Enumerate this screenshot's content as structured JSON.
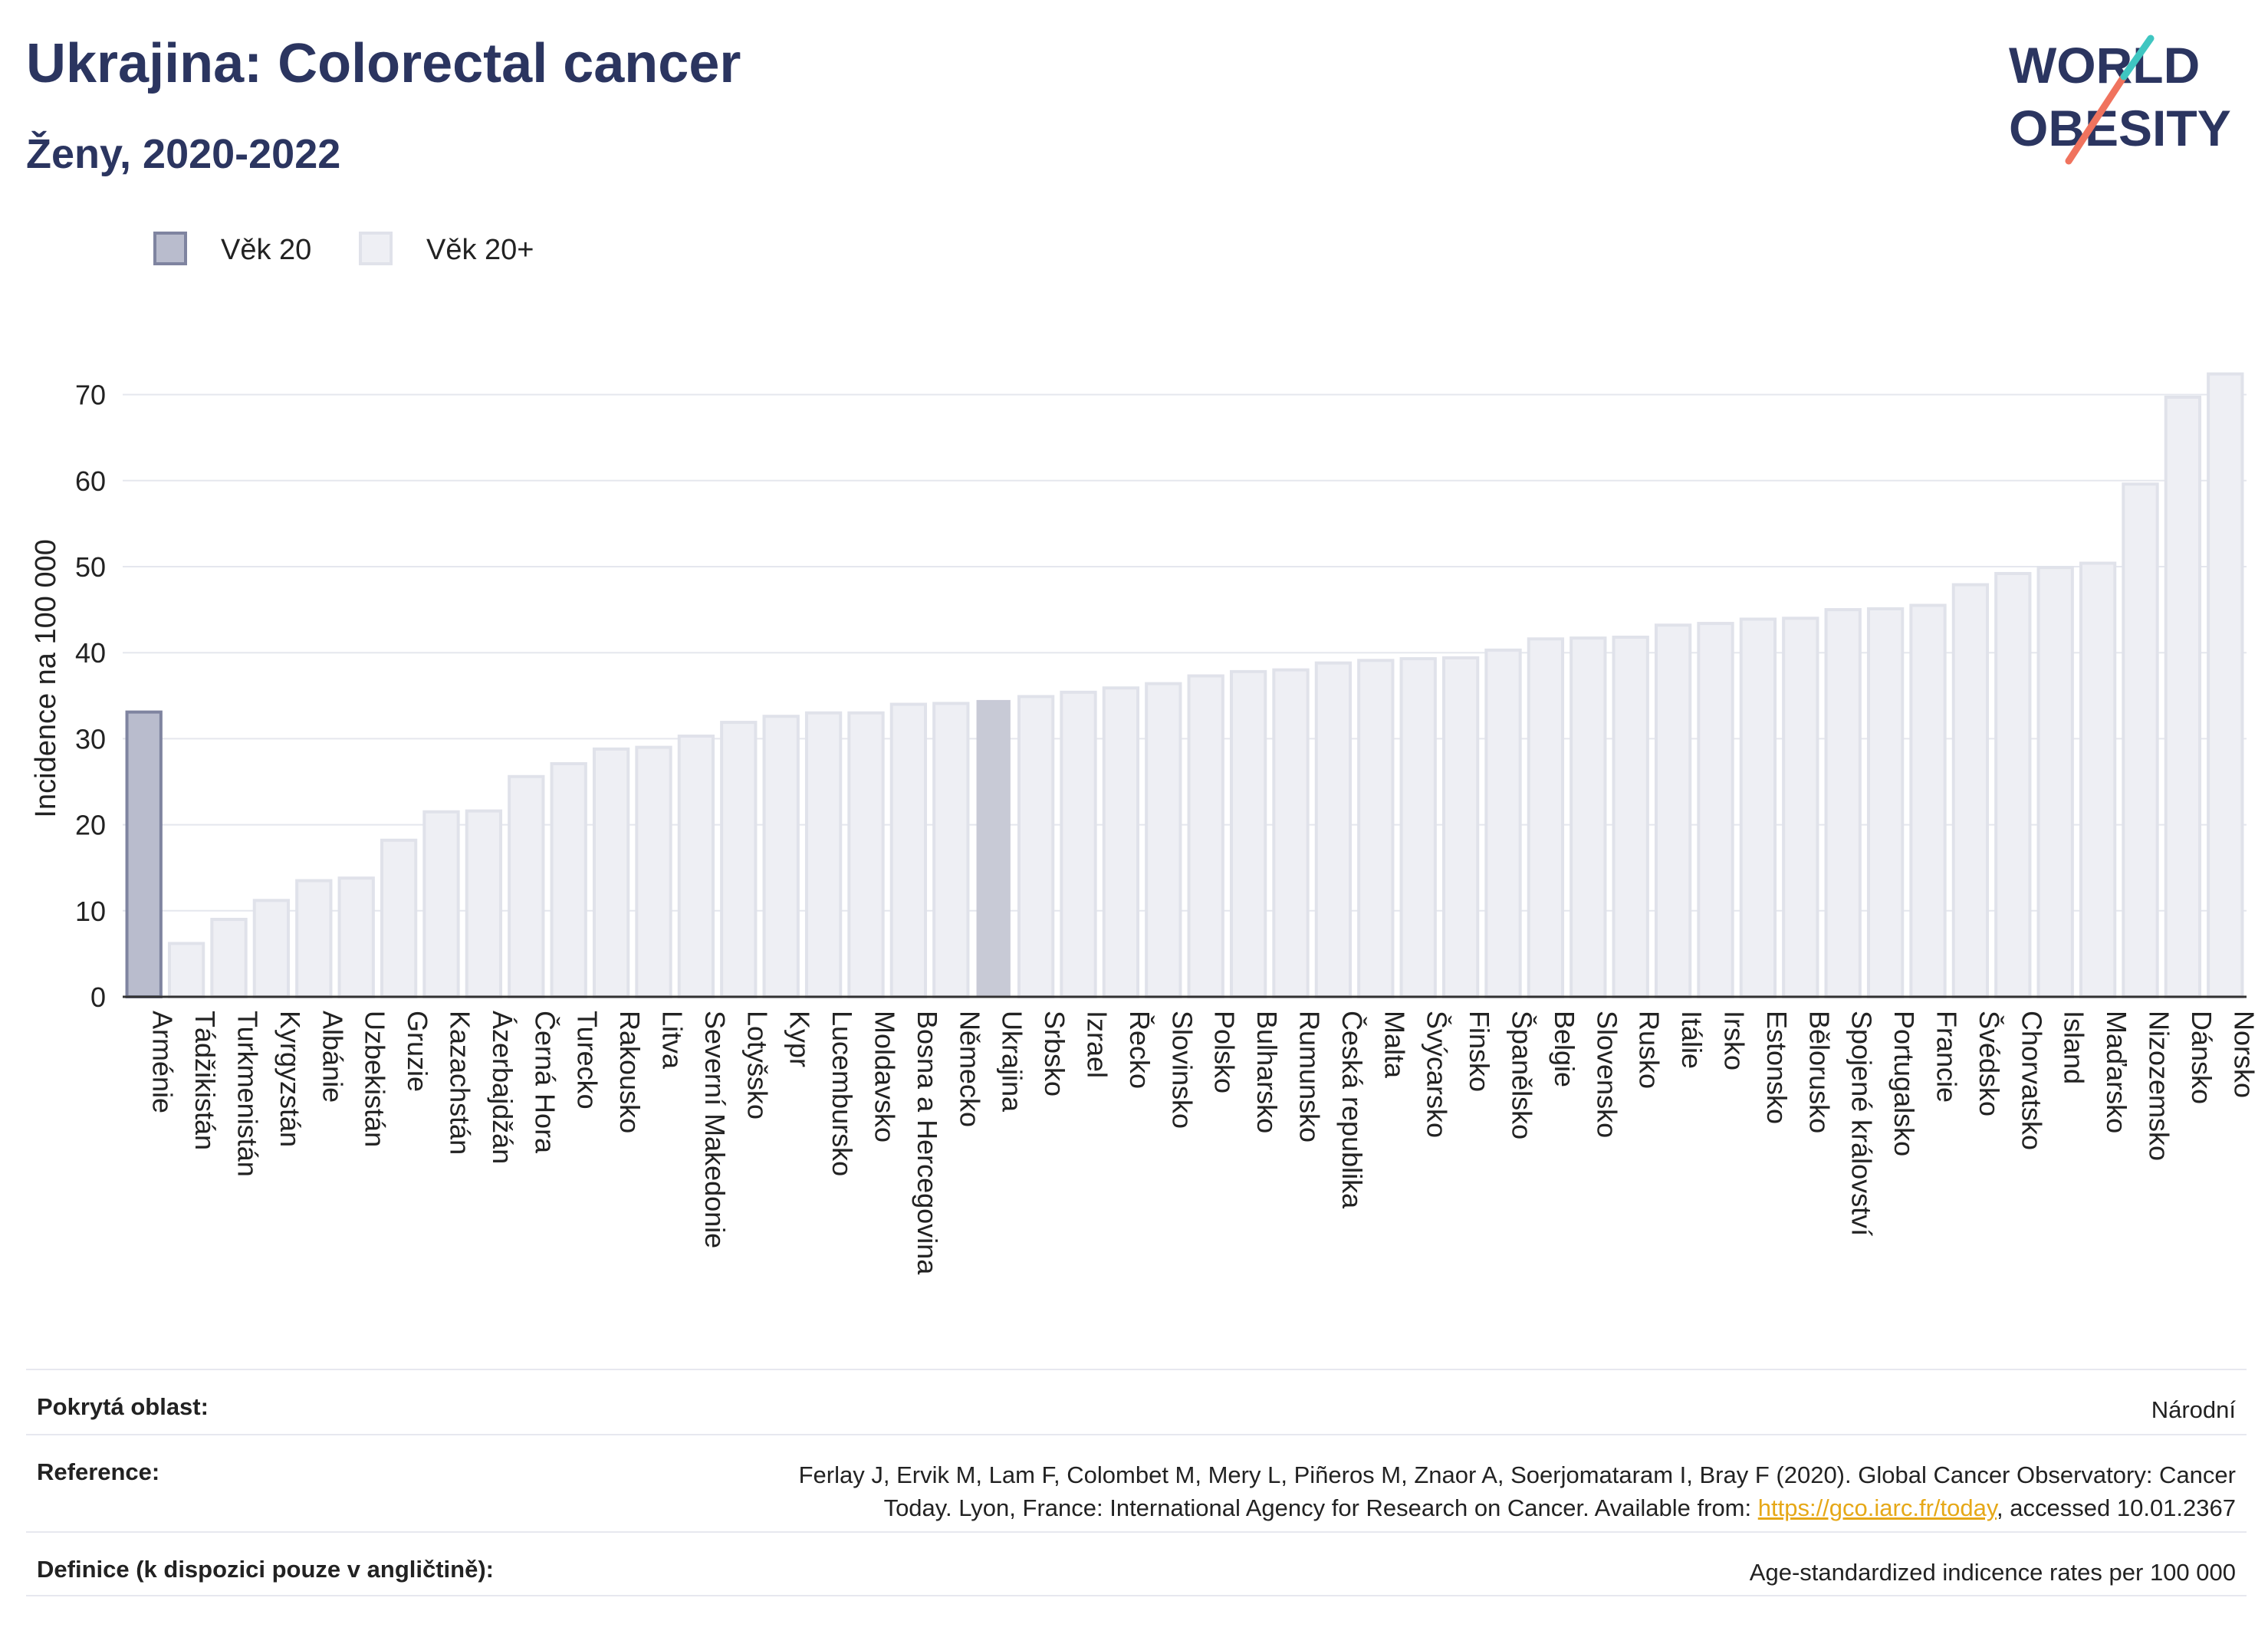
{
  "header": {
    "title": "Ukrajina: Colorectal cancer",
    "subtitle": "Ženy, 2020-2022"
  },
  "logo": {
    "line1": "WORLD",
    "line2": "OBESITY"
  },
  "legend": [
    {
      "label": "Věk 20",
      "color": "#b9bccd",
      "border": "#7f84a0"
    },
    {
      "label": "Věk 20+",
      "color": "#eeeff4",
      "border": "#e0e2ea"
    }
  ],
  "chart_data": {
    "type": "bar",
    "ylabel": "Incidence na 100 000",
    "ylim": [
      0,
      75
    ],
    "yticks": [
      0,
      10,
      20,
      30,
      40,
      50,
      60,
      70
    ],
    "grid": true,
    "highlight": "Ukrajina",
    "categories": [
      "Arménie",
      "Tádžikistán",
      "Turkmenistán",
      "Kyrgyzstán",
      "Albánie",
      "Uzbekistán",
      "Gruzie",
      "Kazachstán",
      "Ázerbajdžán",
      "Černá Hora",
      "Turecko",
      "Rakousko",
      "Litva",
      "Severní Makedonie",
      "Lotyšsko",
      "Kypr",
      "Lucembursko",
      "Moldavsko",
      "Bosna a Hercegovina",
      "Německo",
      "Ukrajina",
      "Srbsko",
      "Izrael",
      "Řecko",
      "Slovinsko",
      "Polsko",
      "Bulharsko",
      "Rumunsko",
      "Česká republika",
      "Malta",
      "Švýcarsko",
      "Finsko",
      "Španělsko",
      "Belgie",
      "Slovensko",
      "Rusko",
      "Itálie",
      "Irsko",
      "Estonsko",
      "Bělorusko",
      "Spojené království",
      "Portugalsko",
      "Francie",
      "Švédsko",
      "Chorvatsko",
      "Island",
      "Maďarsko",
      "Nizozemsko",
      "Dánsko",
      "Norsko"
    ],
    "series": [
      {
        "name": "Věk 20",
        "values": [
          33.1,
          6.2,
          9.0,
          11.2,
          13.5,
          13.8,
          18.2,
          21.5,
          21.6,
          25.6,
          27.1,
          28.8,
          29.0,
          30.3,
          31.9,
          32.6,
          33.0,
          33.0,
          34.0,
          34.1,
          34.5,
          34.9,
          35.4,
          35.9,
          36.4,
          37.3,
          37.8,
          38.0,
          38.8,
          39.1,
          39.3,
          39.4,
          40.3,
          41.6,
          41.7,
          41.8,
          43.2,
          43.4,
          43.9,
          44.0,
          45.0,
          45.1,
          45.5,
          47.9,
          49.2,
          49.9,
          50.4,
          59.6,
          69.7,
          72.4
        ]
      }
    ]
  },
  "footer": {
    "coverage_label": "Pokrytá oblast:",
    "coverage_value": "Národní",
    "reference_label": "Reference:",
    "reference_line1": "Ferlay J, Ervik M, Lam F, Colombet M, Mery L, Piñeros M, Znaor A, Soerjomataram I, Bray F (2020). Global Cancer Observatory: Cancer",
    "reference_line2_pre": "Today. Lyon, France: International Agency for Research on Cancer. Available from: ",
    "reference_link": "https://gco.iarc.fr/today",
    "reference_line2_post": ", accessed 10.01.2367",
    "definition_label": "Definice (k dispozici pouze v angličtině):",
    "definition_value": "Age-standardized indicence rates per 100 000"
  }
}
